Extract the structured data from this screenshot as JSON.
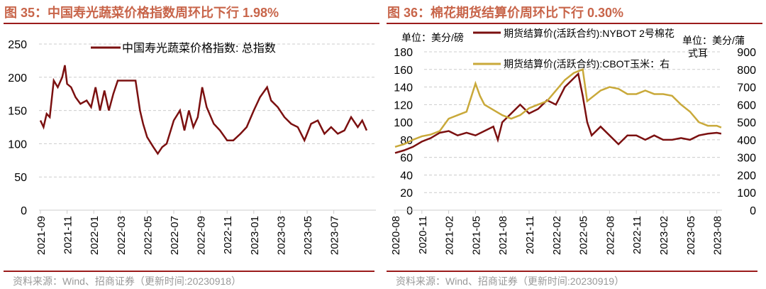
{
  "chart_data": [
    {
      "type": "line",
      "title": "图 35：中国寿光蔬菜价格指数周环比下行 1.98%",
      "source": "资料来源：Wind、招商证券（更新时间:20230918）",
      "ylim": [
        0,
        250
      ],
      "yticks": [
        0,
        50,
        100,
        150,
        200,
        250
      ],
      "grid": true,
      "legend": "top-center",
      "xticks": [
        "2021-09",
        "2021-11",
        "2022-01",
        "2022-03",
        "2022-05",
        "2022-07",
        "2022-09",
        "2022-11",
        "2023-01",
        "2023-03",
        "2023-05",
        "2023-07"
      ],
      "series": [
        {
          "name": "中国寿光蔬菜价格指数: 总指数",
          "color": "#7b1010",
          "x": [
            "2021-09-01",
            "2021-09-08",
            "2021-09-15",
            "2021-09-22",
            "2021-10-01",
            "2021-10-10",
            "2021-10-20",
            "2021-10-26",
            "2021-11-01",
            "2021-11-10",
            "2021-11-20",
            "2021-12-01",
            "2021-12-15",
            "2021-12-25",
            "2022-01-05",
            "2022-01-15",
            "2022-01-25",
            "2022-02-05",
            "2022-02-15",
            "2022-02-25",
            "2022-03-05",
            "2022-03-20",
            "2022-04-05",
            "2022-04-15",
            "2022-04-22",
            "2022-05-01",
            "2022-05-15",
            "2022-05-25",
            "2022-06-05",
            "2022-06-15",
            "2022-07-01",
            "2022-07-15",
            "2022-07-25",
            "2022-08-05",
            "2022-08-15",
            "2022-08-25",
            "2022-09-05",
            "2022-09-15",
            "2022-10-01",
            "2022-10-15",
            "2022-11-01",
            "2022-11-15",
            "2022-12-01",
            "2022-12-15",
            "2023-01-01",
            "2023-01-15",
            "2023-02-01",
            "2023-02-10",
            "2023-02-25",
            "2023-03-10",
            "2023-03-25",
            "2023-04-10",
            "2023-04-25",
            "2023-05-10",
            "2023-05-25",
            "2023-06-10",
            "2023-06-25",
            "2023-07-10",
            "2023-07-25",
            "2023-08-10",
            "2023-08-25",
            "2023-09-05",
            "2023-09-15"
          ],
          "values": [
            135,
            125,
            145,
            140,
            195,
            185,
            200,
            218,
            190,
            185,
            170,
            160,
            165,
            155,
            185,
            150,
            180,
            150,
            175,
            195,
            195,
            195,
            195,
            150,
            130,
            110,
            95,
            85,
            95,
            100,
            135,
            150,
            120,
            150,
            125,
            140,
            185,
            155,
            130,
            120,
            105,
            105,
            115,
            125,
            150,
            170,
            185,
            165,
            155,
            140,
            130,
            125,
            105,
            130,
            135,
            115,
            125,
            115,
            120,
            140,
            125,
            135,
            120
          ]
        }
      ]
    },
    {
      "type": "line",
      "title": "图 36：棉花期货结算价周环比下行 0.30%",
      "source": "资料来源：Wind、招商证券（更新时间:20230919）",
      "ylim": [
        0,
        180
      ],
      "yticks": [
        0,
        20,
        40,
        60,
        80,
        100,
        120,
        140,
        160,
        180
      ],
      "ylabel": "单位：美分/磅",
      "y2lim": [
        0,
        900
      ],
      "y2ticks": [
        0,
        100,
        200,
        300,
        400,
        500,
        600,
        700,
        800,
        900
      ],
      "y2label": "单位：美分/蒲式耳",
      "grid": true,
      "legend": "top",
      "xticks": [
        "2020-08",
        "2020-11",
        "2021-02",
        "2021-05",
        "2021-08",
        "2021-11",
        "2022-02",
        "2022-05",
        "2022-08",
        "2022-11",
        "2023-02",
        "2023-05",
        "2023-08"
      ],
      "series": [
        {
          "name": "期货结算价(活跃合约):NYBOT 2号棉花",
          "color": "#7b1010",
          "axis": "left",
          "months": [
            0,
            1,
            2,
            3,
            4,
            5,
            6,
            7,
            8,
            9,
            10,
            11,
            11.5,
            12,
            13,
            14,
            15,
            16,
            17,
            18,
            19,
            20,
            20.5,
            21,
            21.5,
            22,
            23,
            24,
            25,
            26,
            27,
            28,
            29,
            30,
            31,
            32,
            33,
            34,
            35,
            36,
            36.5
          ],
          "values": [
            65,
            68,
            72,
            78,
            82,
            88,
            90,
            85,
            88,
            85,
            90,
            95,
            80,
            100,
            110,
            120,
            110,
            115,
            125,
            120,
            140,
            150,
            155,
            130,
            100,
            85,
            95,
            85,
            75,
            85,
            85,
            80,
            85,
            80,
            80,
            82,
            80,
            85,
            87,
            88,
            87
          ]
        },
        {
          "name": "期货结算价(活跃合约):CBOT玉米：右",
          "color": "#c9a93a",
          "axis": "right",
          "months": [
            0,
            1,
            2,
            3,
            4,
            5,
            6,
            7,
            8,
            9,
            9.5,
            10,
            11,
            12,
            13,
            14,
            15,
            16,
            17,
            18,
            19,
            20,
            21,
            21.5,
            22,
            23,
            24,
            25,
            26,
            27,
            28,
            29,
            30,
            31,
            32,
            33,
            34,
            35,
            36,
            36.5
          ],
          "values": [
            360,
            375,
            400,
            420,
            430,
            450,
            520,
            540,
            560,
            720,
            650,
            600,
            570,
            540,
            520,
            540,
            580,
            600,
            620,
            680,
            740,
            780,
            800,
            620,
            640,
            680,
            700,
            690,
            660,
            660,
            680,
            660,
            660,
            650,
            600,
            560,
            500,
            480,
            480,
            470
          ]
        }
      ]
    }
  ]
}
